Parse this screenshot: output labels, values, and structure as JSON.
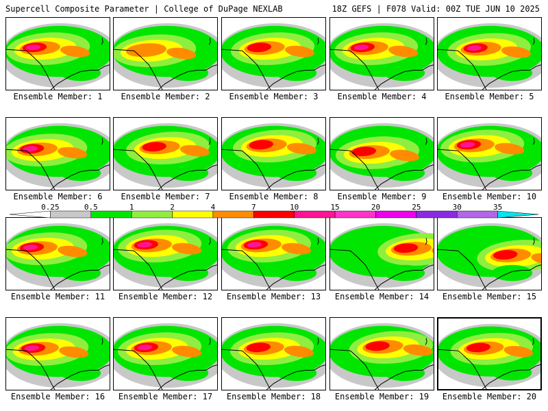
{
  "header": {
    "title": "Supercell Composite Parameter | College of DuPage NEXLAB",
    "valid": "18Z GEFS | F078 Valid: 00Z TUE JUN 10 2025"
  },
  "panels": [
    {
      "label": "Ensemble Member: 1",
      "selected": false
    },
    {
      "label": "Ensemble Member: 2",
      "selected": false
    },
    {
      "label": "Ensemble Member: 3",
      "selected": false
    },
    {
      "label": "Ensemble Member: 4",
      "selected": false
    },
    {
      "label": "Ensemble Member: 5",
      "selected": false
    },
    {
      "label": "Ensemble Member: 6",
      "selected": false
    },
    {
      "label": "Ensemble Member: 7",
      "selected": false
    },
    {
      "label": "Ensemble Member: 8",
      "selected": false
    },
    {
      "label": "Ensemble Member: 9",
      "selected": false
    },
    {
      "label": "Ensemble Member: 10",
      "selected": false
    },
    {
      "label": "Ensemble Member: 11",
      "selected": false
    },
    {
      "label": "Ensemble Member: 12",
      "selected": false
    },
    {
      "label": "Ensemble Member: 13",
      "selected": false
    },
    {
      "label": "Ensemble Member: 14",
      "selected": false
    },
    {
      "label": "Ensemble Member: 15",
      "selected": false
    },
    {
      "label": "Ensemble Member: 16",
      "selected": false
    },
    {
      "label": "Ensemble Member: 17",
      "selected": false
    },
    {
      "label": "Ensemble Member: 18",
      "selected": false
    },
    {
      "label": "Ensemble Member: 19",
      "selected": false
    },
    {
      "label": "Ensemble Member: 20",
      "selected": true
    }
  ],
  "colorbar": {
    "ticks": [
      "0.25",
      "0.5",
      "1",
      "2",
      "4",
      "7",
      "10",
      "15",
      "20",
      "25",
      "30",
      "35"
    ],
    "colors": [
      "#ffffff",
      "#c8c8c8",
      "#00e600",
      "#90ee40",
      "#ffff00",
      "#ff8c00",
      "#ff0000",
      "#ff1493",
      "#ff33cc",
      "#ee00ee",
      "#8a2be2",
      "#b266e8",
      "#00e5ee"
    ]
  }
}
